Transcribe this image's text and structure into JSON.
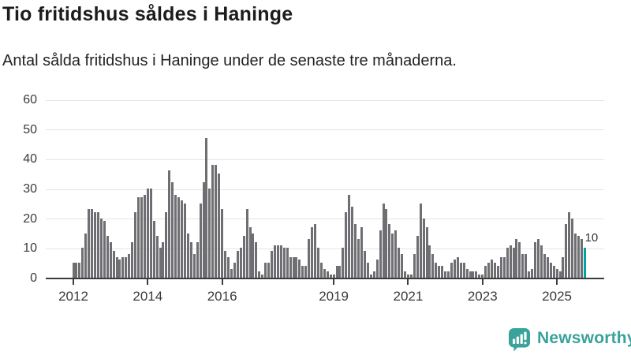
{
  "header": {
    "title": "Tio fritidshus såldes i Haninge",
    "subtitle": "Antal sålda fritidshus i Haninge under de senaste tre månaderna."
  },
  "chart_data": {
    "type": "bar",
    "title": "Tio fritidshus såldes i Haninge",
    "subtitle": "Antal sålda fritidshus i Haninge under de senaste tre månaderna.",
    "start_month": "2012-01",
    "end_month": "2025-10",
    "values": [
      5,
      5,
      5,
      10,
      15,
      23,
      23,
      22,
      22,
      20,
      19,
      14,
      12,
      9,
      7,
      6,
      7,
      7,
      8,
      12,
      22,
      27,
      27,
      28,
      30,
      30,
      19,
      14,
      10,
      12,
      22,
      36,
      32,
      28,
      27,
      26,
      25,
      15,
      12,
      8,
      12,
      25,
      32,
      47,
      30,
      38,
      38,
      35,
      23,
      9,
      7,
      3,
      5,
      9,
      10,
      14,
      23,
      17,
      15,
      12,
      2,
      1,
      5,
      5,
      9,
      11,
      11,
      11,
      10,
      10,
      7,
      7,
      7,
      6,
      4,
      4,
      13,
      17,
      18,
      10,
      5,
      3,
      2,
      1,
      1,
      4,
      4,
      10,
      22,
      28,
      24,
      18,
      13,
      17,
      9,
      5,
      1,
      2,
      6,
      16,
      25,
      23,
      18,
      15,
      16,
      10,
      8,
      2,
      1,
      1,
      8,
      14,
      25,
      20,
      17,
      11,
      8,
      5,
      4,
      4,
      2,
      2,
      5,
      6,
      7,
      5,
      5,
      3,
      2,
      2,
      2,
      1,
      1,
      4,
      5,
      6,
      5,
      4,
      7,
      7,
      10,
      11,
      10,
      13,
      12,
      8,
      8,
      2,
      3,
      12,
      13,
      11,
      8,
      7,
      5,
      4,
      3,
      2,
      7,
      18,
      22,
      20,
      15,
      14,
      13,
      10
    ],
    "highlight": {
      "index": 165,
      "value": 10,
      "label": "10",
      "color": "#00a49e"
    },
    "bar_color": "#6f6f73",
    "ylim": [
      0,
      60
    ],
    "yticks": [
      0,
      10,
      20,
      30,
      40,
      50,
      60
    ],
    "xticks": [
      {
        "label": "2012",
        "month_index": 0
      },
      {
        "label": "2014",
        "month_index": 24
      },
      {
        "label": "2016",
        "month_index": 48
      },
      {
        "label": "2019",
        "month_index": 84
      },
      {
        "label": "2021",
        "month_index": 108
      },
      {
        "label": "2023",
        "month_index": 132
      },
      {
        "label": "2025",
        "month_index": 156
      }
    ],
    "grid": "horizontal",
    "legend": "none"
  },
  "branding": {
    "logo_text": "Newsworthy",
    "logo_color": "#38a29b"
  }
}
